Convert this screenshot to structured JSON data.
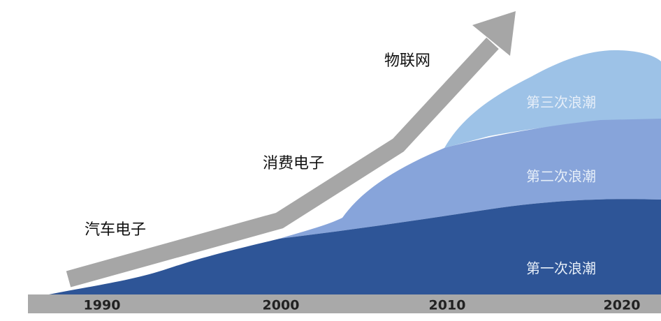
{
  "years": [
    "1990",
    "2000",
    "2010",
    "2020"
  ],
  "technologies": [
    "汽车电子",
    "消费电子",
    "物联网"
  ],
  "waves": [
    "第一次浪潮",
    "第二次浪潮",
    "第三次浪潮"
  ]
}
